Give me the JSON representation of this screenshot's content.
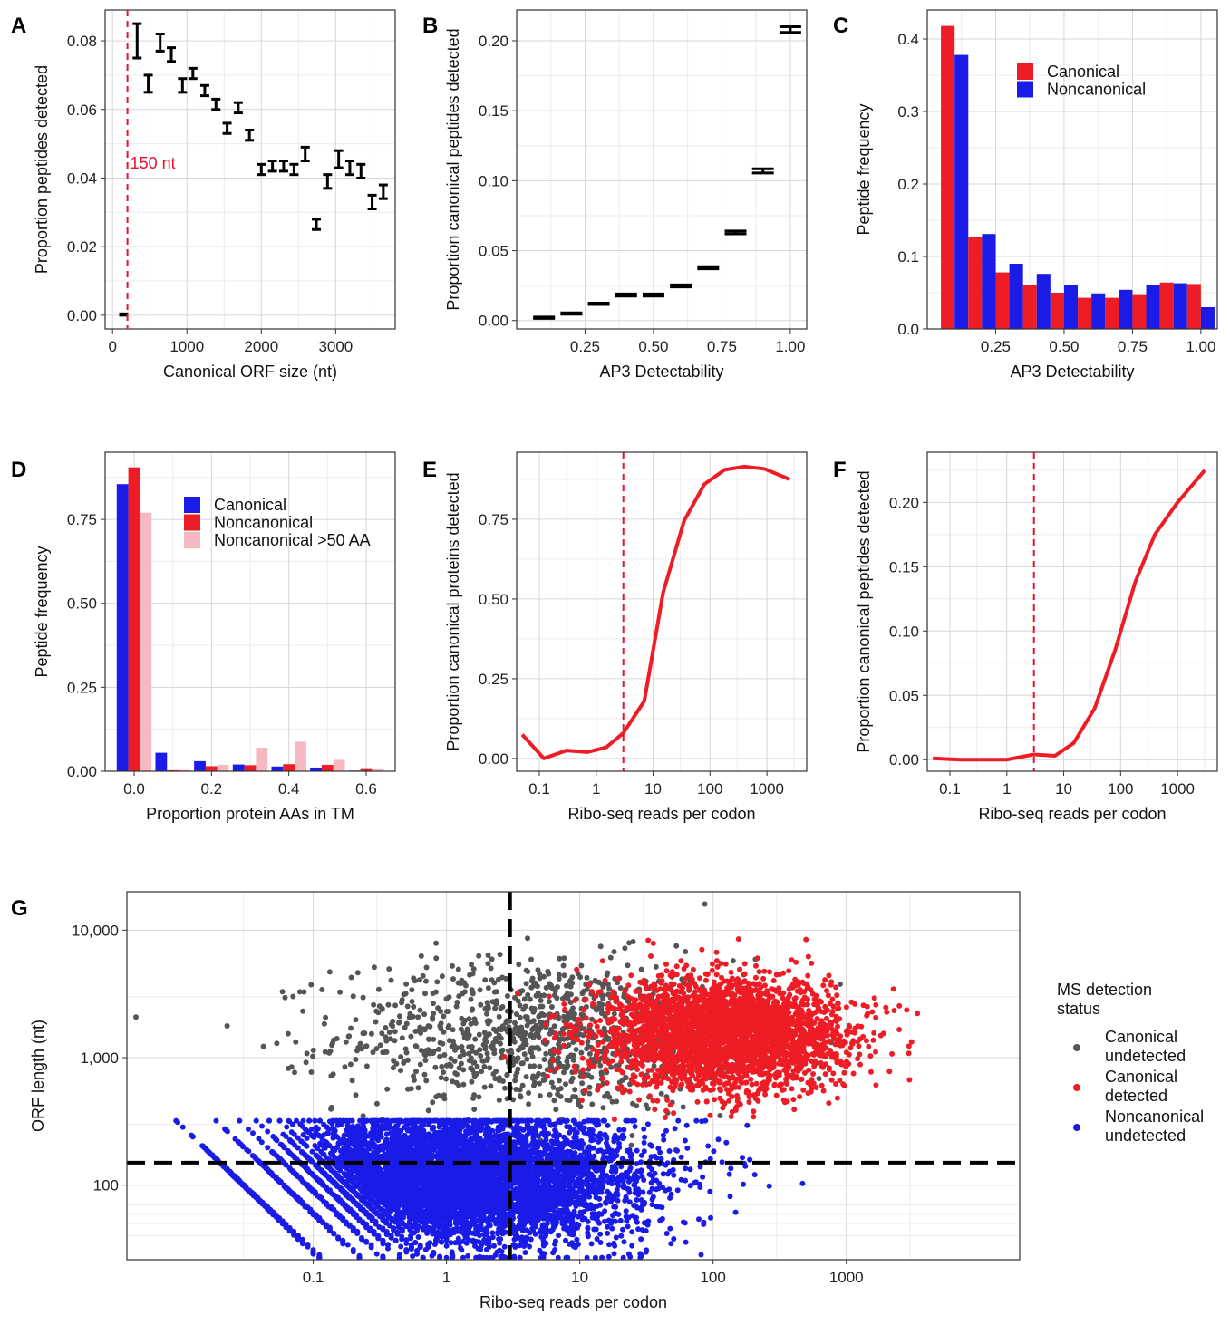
{
  "chart_data": [
    {
      "id": "A",
      "panel_label": "A",
      "type": "errorbar",
      "xlabel": "Canonical ORF size (nt)",
      "ylabel": "Proportion peptides detected",
      "xlim": [
        -100,
        3800
      ],
      "ylim": [
        -0.004,
        0.089
      ],
      "xticks": [
        0,
        1000,
        2000,
        3000
      ],
      "xtick_labels": [
        "0",
        "1000",
        "2000",
        "3000"
      ],
      "yticks": [
        0,
        0.02,
        0.04,
        0.06,
        0.08
      ],
      "ytick_labels": [
        "0.00",
        "0.02",
        "0.04",
        "0.06",
        "0.08"
      ],
      "annotation": {
        "text": "150 nt",
        "x": 200,
        "color": "#e8112d"
      },
      "points": [
        {
          "x": 150,
          "lo": 0.0,
          "hi": 0.0004
        },
        {
          "x": 330,
          "lo": 0.075,
          "hi": 0.085
        },
        {
          "x": 480,
          "lo": 0.065,
          "hi": 0.07
        },
        {
          "x": 640,
          "lo": 0.077,
          "hi": 0.082
        },
        {
          "x": 790,
          "lo": 0.074,
          "hi": 0.078
        },
        {
          "x": 940,
          "lo": 0.065,
          "hi": 0.069
        },
        {
          "x": 1080,
          "lo": 0.069,
          "hi": 0.072
        },
        {
          "x": 1240,
          "lo": 0.064,
          "hi": 0.067
        },
        {
          "x": 1390,
          "lo": 0.06,
          "hi": 0.063
        },
        {
          "x": 1540,
          "lo": 0.053,
          "hi": 0.056
        },
        {
          "x": 1690,
          "lo": 0.059,
          "hi": 0.062
        },
        {
          "x": 1840,
          "lo": 0.051,
          "hi": 0.054
        },
        {
          "x": 2000,
          "lo": 0.041,
          "hi": 0.044
        },
        {
          "x": 2150,
          "lo": 0.042,
          "hi": 0.045
        },
        {
          "x": 2300,
          "lo": 0.042,
          "hi": 0.045
        },
        {
          "x": 2440,
          "lo": 0.041,
          "hi": 0.044
        },
        {
          "x": 2590,
          "lo": 0.045,
          "hi": 0.049
        },
        {
          "x": 2740,
          "lo": 0.025,
          "hi": 0.028
        },
        {
          "x": 2890,
          "lo": 0.037,
          "hi": 0.041
        },
        {
          "x": 3040,
          "lo": 0.043,
          "hi": 0.048
        },
        {
          "x": 3190,
          "lo": 0.041,
          "hi": 0.045
        },
        {
          "x": 3340,
          "lo": 0.04,
          "hi": 0.044
        },
        {
          "x": 3490,
          "lo": 0.031,
          "hi": 0.035
        },
        {
          "x": 3640,
          "lo": 0.034,
          "hi": 0.038
        }
      ]
    },
    {
      "id": "B",
      "panel_label": "B",
      "type": "errorbar",
      "xlabel": "AP3 Detectability",
      "ylabel": "Proportion canonical peptides detected",
      "xlim": [
        0.0,
        1.06
      ],
      "ylim": [
        -0.006,
        0.222
      ],
      "xticks": [
        0.25,
        0.5,
        0.75,
        1.0
      ],
      "xtick_labels": [
        "0.25",
        "0.50",
        "0.75",
        "1.00"
      ],
      "yticks": [
        0,
        0.05,
        0.1,
        0.15,
        0.2
      ],
      "ytick_labels": [
        "0.00",
        "0.05",
        "0.10",
        "0.15",
        "0.20"
      ],
      "points": [
        {
          "x": 0.1,
          "lo": 0.0015,
          "hi": 0.0025
        },
        {
          "x": 0.2,
          "lo": 0.0045,
          "hi": 0.0055
        },
        {
          "x": 0.3,
          "lo": 0.0115,
          "hi": 0.0125
        },
        {
          "x": 0.4,
          "lo": 0.0175,
          "hi": 0.019
        },
        {
          "x": 0.5,
          "lo": 0.0175,
          "hi": 0.019
        },
        {
          "x": 0.6,
          "lo": 0.024,
          "hi": 0.0255
        },
        {
          "x": 0.7,
          "lo": 0.037,
          "hi": 0.0385
        },
        {
          "x": 0.8,
          "lo": 0.062,
          "hi": 0.064
        },
        {
          "x": 0.9,
          "lo": 0.1055,
          "hi": 0.1085
        },
        {
          "x": 1.0,
          "lo": 0.206,
          "hi": 0.21
        }
      ]
    },
    {
      "id": "C",
      "panel_label": "C",
      "type": "bar",
      "xlabel": "AP3 Detectability",
      "ylabel": "Peptide frequency",
      "xlim": [
        0.0,
        1.06
      ],
      "ylim": [
        0,
        0.44
      ],
      "xticks": [
        0.25,
        0.5,
        0.75,
        1.0
      ],
      "xtick_labels": [
        "0.25",
        "0.50",
        "0.75",
        "1.00"
      ],
      "yticks": [
        0,
        0.1,
        0.2,
        0.3,
        0.4
      ],
      "ytick_labels": [
        "0.0",
        "0.1",
        "0.2",
        "0.3",
        "0.4"
      ],
      "categories": [
        0.1,
        0.2,
        0.3,
        0.4,
        0.5,
        0.6,
        0.7,
        0.8,
        0.9,
        1.0
      ],
      "bar_width": 0.05,
      "series": [
        {
          "name": "Canonical",
          "color": "#ee1c25",
          "values": [
            0.418,
            0.127,
            0.078,
            0.061,
            0.05,
            0.043,
            0.043,
            0.048,
            0.064,
            0.062
          ]
        },
        {
          "name": "Noncanonical",
          "color": "#1b1be8",
          "values": [
            0.378,
            0.131,
            0.09,
            0.076,
            0.06,
            0.049,
            0.054,
            0.061,
            0.063,
            0.03
          ]
        }
      ],
      "legend": "top-right"
    },
    {
      "id": "D",
      "panel_label": "D",
      "type": "bar",
      "xlabel": "Proportion protein AAs in TM",
      "ylabel": "Peptide frequency",
      "xlim": [
        -0.075,
        0.675
      ],
      "ylim": [
        0,
        0.95
      ],
      "xticks": [
        0.0,
        0.2,
        0.4,
        0.6
      ],
      "xtick_labels": [
        "0.0",
        "0.2",
        "0.4",
        "0.6"
      ],
      "yticks": [
        0,
        0.25,
        0.5,
        0.75
      ],
      "ytick_labels": [
        "0.00",
        "0.25",
        "0.50",
        "0.75"
      ],
      "categories": [
        0.0,
        0.1,
        0.2,
        0.3,
        0.4,
        0.5,
        0.6
      ],
      "bar_width": 0.03,
      "series": [
        {
          "name": "Canonical",
          "color": "#1b1be8",
          "values": [
            0.855,
            0.055,
            0.03,
            0.02,
            0.014,
            0.011,
            0.002
          ]
        },
        {
          "name": "Noncanonical",
          "color": "#ee1c25",
          "values": [
            0.905,
            0.003,
            0.015,
            0.018,
            0.021,
            0.019,
            0.009
          ]
        },
        {
          "name": "Noncanonical >50 AA",
          "color": "#f7b9c1",
          "values": [
            0.77,
            0.004,
            0.019,
            0.07,
            0.088,
            0.034,
            0.006
          ]
        }
      ],
      "legend": "top-right"
    },
    {
      "id": "E",
      "panel_label": "E",
      "type": "line",
      "xlabel": "Ribo-seq reads per codon",
      "ylabel": "Proportion canonical proteins detected",
      "xscale": "log10",
      "xlim": [
        0.04,
        5000
      ],
      "ylim": [
        -0.04,
        0.96
      ],
      "xticks": [
        0.1,
        1,
        10,
        100,
        1000
      ],
      "xtick_labels": [
        "0.1",
        "1",
        "10",
        "100",
        "1000"
      ],
      "yticks": [
        0,
        0.25,
        0.5,
        0.75
      ],
      "ytick_labels": [
        "0.00",
        "0.25",
        "0.50",
        "0.75"
      ],
      "vline_x": 3,
      "x": [
        0.05,
        0.12,
        0.3,
        0.7,
        1.5,
        3,
        7,
        15,
        35,
        80,
        180,
        400,
        900,
        2500
      ],
      "y": [
        0.075,
        0.0,
        0.025,
        0.02,
        0.035,
        0.08,
        0.18,
        0.52,
        0.745,
        0.86,
        0.905,
        0.915,
        0.908,
        0.875
      ],
      "color": "#ee1c25"
    },
    {
      "id": "F",
      "panel_label": "F",
      "type": "line",
      "xlabel": "Ribo-seq reads per codon",
      "ylabel": "Proportion canonical peptides detected",
      "xscale": "log10",
      "xlim": [
        0.04,
        5000
      ],
      "ylim": [
        -0.009,
        0.239
      ],
      "xticks": [
        0.1,
        1,
        10,
        100,
        1000
      ],
      "xtick_labels": [
        "0.1",
        "1",
        "10",
        "100",
        "1000"
      ],
      "yticks": [
        0,
        0.05,
        0.1,
        0.15,
        0.2
      ],
      "ytick_labels": [
        "0.00",
        "0.05",
        "0.10",
        "0.15",
        "0.20"
      ],
      "vline_x": 3,
      "x": [
        0.05,
        0.15,
        0.4,
        1,
        3,
        7,
        15,
        35,
        80,
        180,
        400,
        1000,
        3000
      ],
      "y": [
        0.001,
        0.0,
        0.0,
        0.0,
        0.004,
        0.003,
        0.013,
        0.04,
        0.085,
        0.138,
        0.175,
        0.2,
        0.225
      ],
      "color": "#ee1c25"
    },
    {
      "id": "G",
      "panel_label": "G",
      "type": "scatter",
      "xlabel": "Ribo-seq reads per codon",
      "ylabel": "ORF length (nt)",
      "xscale": "log10",
      "yscale": "log10",
      "xlim": [
        0.004,
        20000
      ],
      "ylim": [
        26,
        20000
      ],
      "xticks": [
        0.1,
        1,
        10,
        100,
        1000
      ],
      "xtick_labels": [
        "0.1",
        "1",
        "10",
        "100",
        "1000"
      ],
      "yticks": [
        100,
        1000,
        10000
      ],
      "ytick_labels": [
        "100",
        "1,000",
        "10,000"
      ],
      "vline_x": 3,
      "hline_y": 150,
      "legend_title": "MS detection status",
      "groups": [
        {
          "label": "Canonical undetected",
          "color": "#555555",
          "center_x": 5,
          "center_y": 1500,
          "sd_logx": 0.75,
          "sd_logy": 0.3,
          "n": 1100
        },
        {
          "label": "Canonical detected",
          "color": "#ee1c25",
          "center_x": 120,
          "center_y": 1500,
          "sd_logx": 0.45,
          "sd_logy": 0.22,
          "n": 3200
        },
        {
          "label": "Noncanonical undetected",
          "color": "#1b1be8",
          "center_x": 1,
          "center_y": 110,
          "sd_logx": 0.7,
          "sd_logy": 0.25,
          "n": 7000
        }
      ]
    }
  ]
}
